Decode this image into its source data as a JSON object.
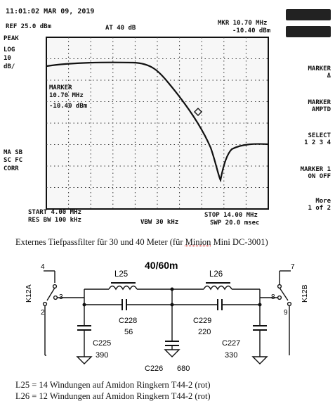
{
  "analyzer": {
    "datetime": "11:01:02 MAR 09, 2019",
    "ref_level": "REF 25.0 dBm",
    "attenuation": "AT 40 dB",
    "marker_readout_freq": "MKR 10.70 MHz",
    "marker_readout_level": "-10.40 dBm",
    "scale_mode": "PEAK",
    "scale_type": "LOG",
    "scale_div": "10",
    "scale_unit": "dB/",
    "marker_box_title": "MARKER",
    "marker_box_freq": "10.70 MHz",
    "marker_box_level": "-10.40 dBm",
    "left_status_1": "MA SB",
    "left_status_2": "SC FC",
    "left_status_3": "CORR",
    "start_freq": "START 4.00 MHz",
    "res_bw": "RES BW 100 kHz",
    "video_bw": "VBW 30 kHz",
    "stop_freq": "STOP 14.00 MHz",
    "sweep_time": "SWP 20.0 msec",
    "softkeys": {
      "marker_delta_1": "MARKER",
      "marker_delta_2": "Δ",
      "marker_amptd_1": "MARKER",
      "marker_amptd_2": "AMPTD",
      "select_1": "SELECT",
      "select_2": "1 2 3 4",
      "marker1_1": "MARKER 1",
      "marker1_2": "ON OFF",
      "more_1": "More",
      "more_2": "1 of 2"
    }
  },
  "caption": {
    "prefix": "Externes Tiefpassfilter für 30 und 40 Meter (für ",
    "minion": "Minion",
    "suffix": " Mini DC-3001)"
  },
  "schematic": {
    "band_label": "40/60m",
    "relay_left": "K12A",
    "relay_right": "K12B",
    "pin_4": "4",
    "pin_3": "3",
    "pin_2": "2",
    "pin_7": "7",
    "pin_8": "8",
    "pin_9": "9",
    "l25": "L25",
    "l26": "L26",
    "c228": "C228",
    "c228_val": "56",
    "c229": "C229",
    "c229_val": "220",
    "c225": "C225",
    "c225_val": "390",
    "c226": "C226",
    "c226_val": "680",
    "c227": "C227",
    "c227_val": "330"
  },
  "notes": {
    "l25": "L25 = 14 Windungen auf Amidon Ringkern T44-2 (rot)",
    "l26": "L26 = 12 Windungen auf Amidon Ringkern T44-2 (rot)"
  }
}
